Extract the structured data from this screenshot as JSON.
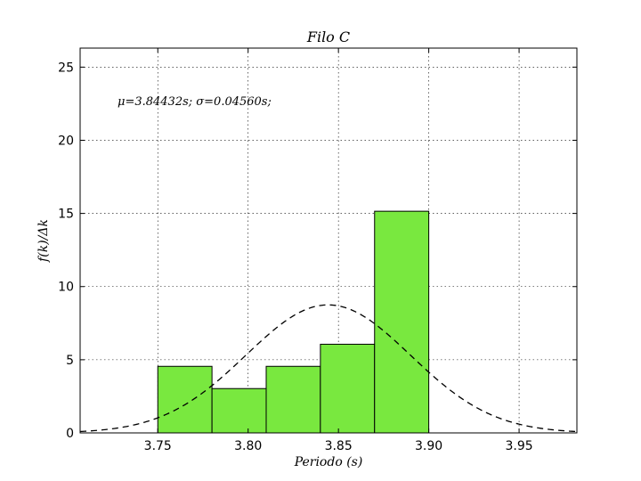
{
  "chart_data": {
    "type": "bar",
    "title": "Filo C",
    "xlabel": "Periodo (s)",
    "ylabel": "f(k)/Δk",
    "annotation": "μ=3.84432s; σ=0.04560s;",
    "xlim": [
      3.707,
      3.982
    ],
    "ylim": [
      0,
      26.3
    ],
    "xticks": [
      3.75,
      3.8,
      3.85,
      3.9,
      3.95
    ],
    "xtick_labels": [
      "3.75",
      "3.80",
      "3.85",
      "3.90",
      "3.95"
    ],
    "yticks": [
      0,
      5,
      10,
      15,
      20,
      25
    ],
    "ytick_labels": [
      "0",
      "5",
      "10",
      "15",
      "20",
      "25"
    ],
    "grid": true,
    "bins": [
      {
        "x0": 3.75,
        "x1": 3.78,
        "value": 4.55
      },
      {
        "x0": 3.78,
        "x1": 3.81,
        "value": 3.03
      },
      {
        "x0": 3.81,
        "x1": 3.84,
        "value": 4.55
      },
      {
        "x0": 3.84,
        "x1": 3.87,
        "value": 6.06
      },
      {
        "x0": 3.87,
        "x1": 3.9,
        "value": 15.15
      }
    ],
    "normal_curve": {
      "mu": 3.84432,
      "sigma": 0.0456,
      "style": "dashed"
    },
    "bar_color": "#79e83f"
  }
}
